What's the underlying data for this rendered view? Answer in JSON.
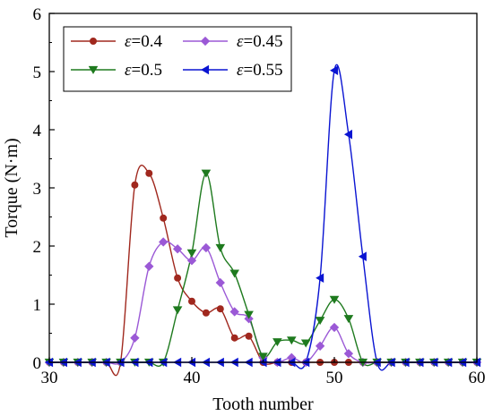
{
  "chart_data": {
    "type": "line",
    "xlabel": "Tooth number",
    "ylabel": "Torque (N·m)",
    "xlim": [
      30,
      60
    ],
    "ylim": [
      0,
      6
    ],
    "xticks": [
      30,
      40,
      50,
      60
    ],
    "yticks": [
      0,
      1,
      2,
      3,
      4,
      5,
      6
    ],
    "grid": false,
    "legend_position": "top-left",
    "series": [
      {
        "name": "ε=0.4",
        "symbol": "ε",
        "value_label": "=0.4",
        "color": "#A0281E",
        "marker": "circle",
        "x": [
          30,
          31,
          32,
          33,
          34,
          35,
          36,
          37,
          38,
          39,
          40,
          41,
          42,
          43,
          44,
          45,
          46,
          47,
          48,
          49,
          50,
          51,
          52,
          53,
          54,
          55,
          56,
          57,
          58,
          59,
          60
        ],
        "y": [
          0,
          0,
          0,
          0,
          0,
          0,
          3.05,
          3.25,
          2.48,
          1.45,
          1.05,
          0.85,
          0.92,
          0.42,
          0.45,
          0,
          0,
          0,
          0,
          0,
          0,
          0,
          0,
          0,
          0,
          0,
          0,
          0,
          0,
          0,
          0
        ]
      },
      {
        "name": "ε=0.45",
        "symbol": "ε",
        "value_label": "=0.45",
        "color": "#9B59D6",
        "marker": "diamond",
        "x": [
          30,
          31,
          32,
          33,
          34,
          35,
          36,
          37,
          38,
          39,
          40,
          41,
          42,
          43,
          44,
          45,
          46,
          47,
          48,
          49,
          50,
          51,
          52,
          53,
          54,
          55,
          56,
          57,
          58,
          59,
          60
        ],
        "y": [
          0,
          0,
          0,
          0,
          0,
          0,
          0.42,
          1.65,
          2.07,
          1.95,
          1.75,
          1.97,
          1.37,
          0.87,
          0.75,
          0.08,
          0,
          0.08,
          0,
          0.28,
          0.6,
          0.15,
          0,
          0,
          0,
          0,
          0,
          0,
          0,
          0,
          0
        ]
      },
      {
        "name": "ε=0.5",
        "symbol": "ε",
        "value_label": "=0.5",
        "color": "#1E7A1E",
        "marker": "triangle-down",
        "x": [
          30,
          31,
          32,
          33,
          34,
          35,
          36,
          37,
          38,
          39,
          40,
          41,
          42,
          43,
          44,
          45,
          46,
          47,
          48,
          49,
          50,
          51,
          52,
          53,
          54,
          55,
          56,
          57,
          58,
          59,
          60
        ],
        "y": [
          0,
          0,
          0,
          0,
          0,
          0,
          0,
          0,
          0,
          0.9,
          1.88,
          3.25,
          1.97,
          1.53,
          0.82,
          0.1,
          0.35,
          0.38,
          0.33,
          0.72,
          1.08,
          0.75,
          0,
          0,
          0,
          0,
          0,
          0,
          0,
          0,
          0
        ]
      },
      {
        "name": "ε=0.55",
        "symbol": "ε",
        "value_label": "=0.55",
        "color": "#0A14D2",
        "marker": "triangle-left",
        "x": [
          30,
          31,
          32,
          33,
          34,
          35,
          36,
          37,
          38,
          39,
          40,
          41,
          42,
          43,
          44,
          45,
          46,
          47,
          48,
          49,
          50,
          51,
          52,
          53,
          54,
          55,
          56,
          57,
          58,
          59,
          60
        ],
        "y": [
          0,
          0,
          0,
          0,
          0,
          0,
          0,
          0,
          0,
          0,
          0,
          0,
          0,
          0,
          0,
          0,
          0,
          0,
          0,
          1.45,
          5.02,
          3.92,
          1.82,
          0,
          0,
          0,
          0,
          0,
          0,
          0,
          0
        ]
      }
    ]
  }
}
